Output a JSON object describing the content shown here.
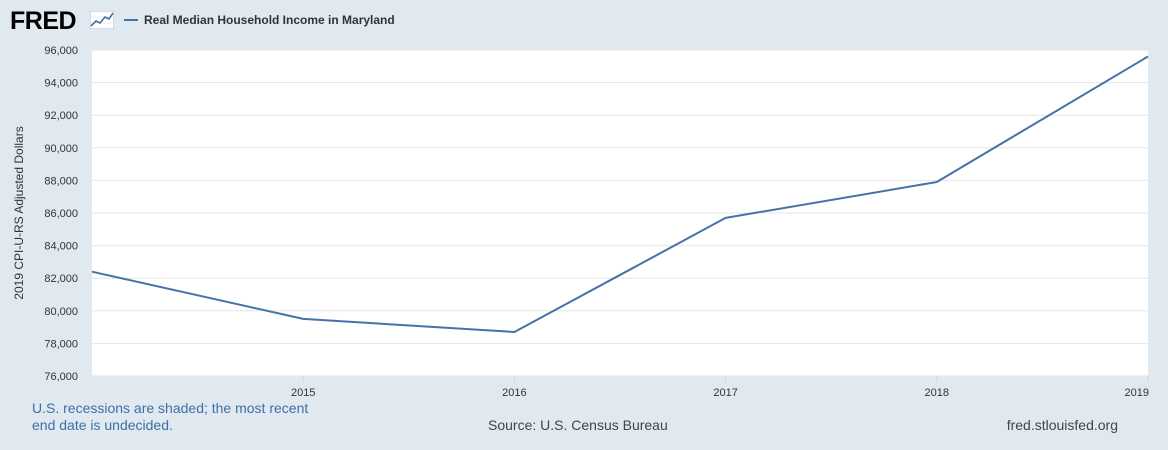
{
  "header": {
    "logo_text": "FRED",
    "logo_icon": "line-chart-icon",
    "legend_label": "Real Median Household Income in Maryland",
    "series_color": "#4572a7"
  },
  "chart_data": {
    "type": "line",
    "title": "",
    "xlabel": "",
    "ylabel": "2019 CPI-U-RS Adjusted Dollars",
    "x": [
      2014,
      2015,
      2016,
      2017,
      2018,
      2019
    ],
    "x_tick_labels": [
      "2015",
      "2016",
      "2017",
      "2018",
      "2019"
    ],
    "y_tick_labels": [
      "76,000",
      "78,000",
      "80,000",
      "82,000",
      "84,000",
      "86,000",
      "88,000",
      "90,000",
      "92,000",
      "94,000",
      "96,000"
    ],
    "ylim": [
      76000,
      96000
    ],
    "xlim": [
      2014,
      2019
    ],
    "grid": true,
    "series": [
      {
        "name": "Real Median Household Income in Maryland",
        "values": [
          82400,
          79500,
          78700,
          85700,
          87900,
          95600
        ]
      }
    ]
  },
  "footer": {
    "recession_note": "U.S. recessions are shaded; the most recent end date is undecided.",
    "source": "Source: U.S. Census Bureau",
    "url": "fred.stlouisfed.org"
  }
}
